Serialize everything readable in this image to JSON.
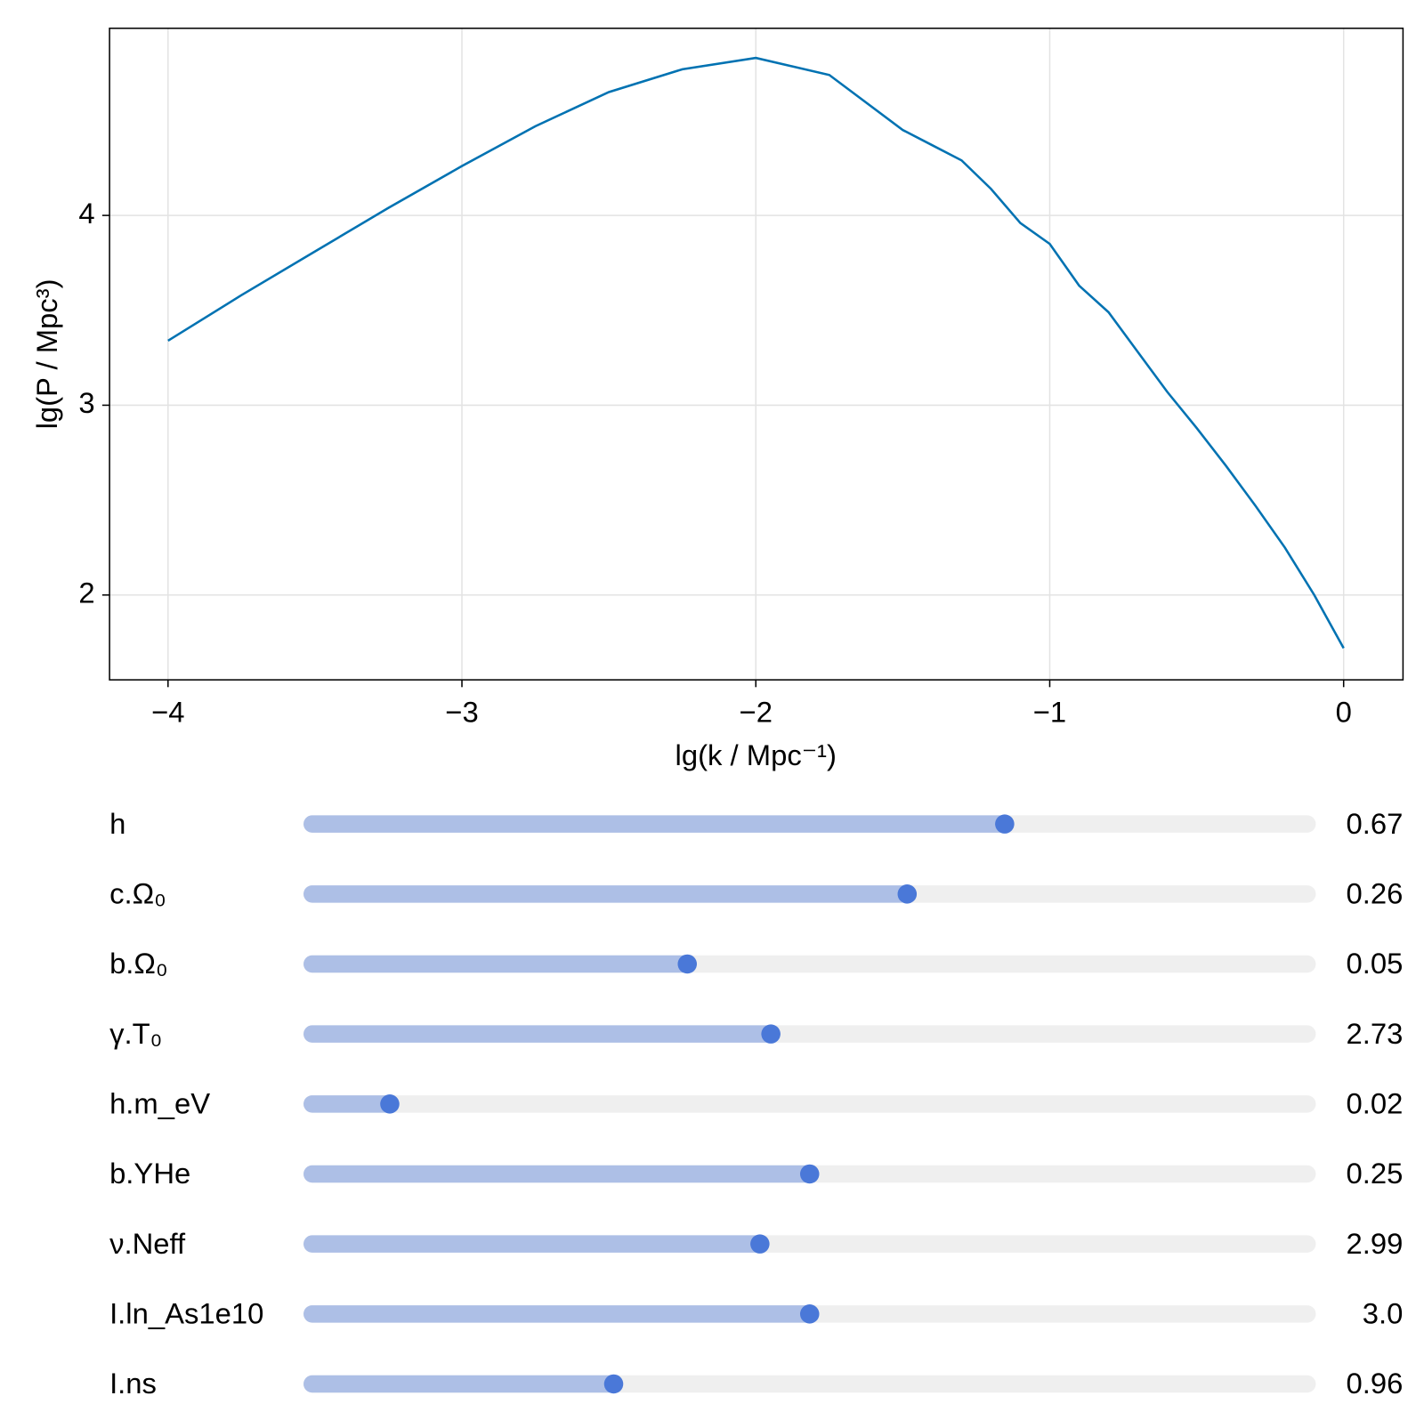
{
  "chart_data": {
    "type": "line",
    "xlabel": "lg(k / Mpc⁻¹)",
    "ylabel": "lg(P / Mpc³)",
    "x": [
      -4,
      -3.75,
      -3.5,
      -3.25,
      -3,
      -2.75,
      -2.5,
      -2.25,
      -2,
      -1.75,
      -1.5,
      -1.4,
      -1.3,
      -1.2,
      -1.1,
      -1,
      -0.9,
      -0.8,
      -0.7,
      -0.6,
      -0.5,
      -0.4,
      -0.3,
      -0.2,
      -0.1,
      0
    ],
    "series": [
      {
        "color": "#0072b2",
        "values": [
          3.34,
          3.58,
          3.81,
          4.04,
          4.26,
          4.47,
          4.65,
          4.77,
          4.83,
          4.74,
          4.45,
          4.37,
          4.29,
          4.14,
          3.96,
          3.85,
          3.63,
          3.49,
          3.28,
          3.07,
          2.88,
          2.68,
          2.47,
          2.25,
          2.0,
          1.72
        ]
      }
    ],
    "xlim": [
      -4.199,
      0.202
    ],
    "ylim": [
      1.553,
      4.986
    ],
    "xticks": [
      {
        "value": -4,
        "label": "−4"
      },
      {
        "value": -3,
        "label": "−3"
      },
      {
        "value": -2,
        "label": "−2"
      },
      {
        "value": -1,
        "label": "−1"
      },
      0
    ],
    "yticks": [
      2,
      3,
      4
    ],
    "grid": true
  },
  "sliders": [
    {
      "label": "h",
      "value": 0.67,
      "fraction": 0.696
    },
    {
      "label": "c.Ω₀",
      "value": 0.26,
      "fraction": 0.598
    },
    {
      "label": "b.Ω₀",
      "value": 0.05,
      "fraction": 0.377
    },
    {
      "label": "γ.T₀",
      "value": 2.73,
      "fraction": 0.461
    },
    {
      "label": "h.m_eV",
      "value": 0.02,
      "fraction": 0.078
    },
    {
      "label": "b.YHe",
      "value": 0.25,
      "fraction": 0.5
    },
    {
      "label": "ν.Neff",
      "value": 2.99,
      "fraction": 0.45
    },
    {
      "label": "I.ln_As1e10",
      "value": 3,
      "value_label": "3.0",
      "fraction": 0.5
    },
    {
      "label": "I.ns",
      "value": 0.96,
      "fraction": 0.303
    }
  ]
}
